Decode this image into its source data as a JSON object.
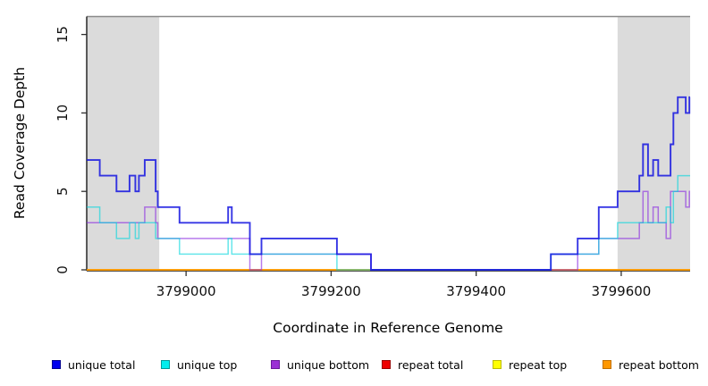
{
  "chart_data": {
    "type": "line",
    "subtype": "step-coverage",
    "title": "",
    "xlabel": "Coordinate in Reference Genome",
    "ylabel": "Read Coverage Depth",
    "xlim": [
      3798863,
      3799695
    ],
    "ylim": [
      0,
      16.2
    ],
    "x_ticks": [
      3799000,
      3799200,
      3799400,
      3799600
    ],
    "x_tick_labels": [
      "3799000",
      "3799200",
      "3799400",
      "3799600"
    ],
    "y_ticks": [
      0,
      5,
      10,
      15
    ],
    "y_tick_labels": [
      "0",
      "5",
      "10",
      "15"
    ],
    "grid": false,
    "legend_position": "bottom",
    "shaded_region_color": "#DBDBDB",
    "shaded_regions": [
      {
        "x0": 3798863,
        "x1": 3798963
      },
      {
        "x0": 3799595,
        "x1": 3799695
      }
    ],
    "series": [
      {
        "name": "unique-total",
        "label": "unique total",
        "line_color": "#1414E0",
        "line_opacity": 0.85,
        "line_width": 1.9,
        "swatch_fill": "#0000EE",
        "swatch_border": "#000090",
        "points": [
          [
            3798863,
            7
          ],
          [
            3798881,
            6
          ],
          [
            3798904,
            5
          ],
          [
            3798922,
            6
          ],
          [
            3798930,
            5
          ],
          [
            3798935,
            6
          ],
          [
            3798943,
            7
          ],
          [
            3798958,
            5
          ],
          [
            3798961,
            4
          ],
          [
            3798991,
            3
          ],
          [
            3799058,
            4
          ],
          [
            3799063,
            3
          ],
          [
            3799088,
            1
          ],
          [
            3799104,
            2
          ],
          [
            3799208,
            1
          ],
          [
            3799255,
            0
          ],
          [
            3799503,
            1
          ],
          [
            3799540,
            2
          ],
          [
            3799569,
            4
          ],
          [
            3799595,
            5
          ],
          [
            3799625,
            6
          ],
          [
            3799630,
            8
          ],
          [
            3799637,
            6
          ],
          [
            3799644,
            7
          ],
          [
            3799651,
            6
          ],
          [
            3799668,
            8
          ],
          [
            3799672,
            10
          ],
          [
            3799678,
            11
          ],
          [
            3799689,
            10
          ],
          [
            3799694,
            11
          ]
        ]
      },
      {
        "name": "unique-top",
        "label": "unique top",
        "line_color": "#00D5DC",
        "line_opacity": 0.6,
        "line_width": 1.5,
        "swatch_fill": "#00EEEE",
        "swatch_border": "#009999",
        "points": [
          [
            3798863,
            4
          ],
          [
            3798881,
            3
          ],
          [
            3798904,
            2
          ],
          [
            3798922,
            3
          ],
          [
            3798930,
            2
          ],
          [
            3798935,
            3
          ],
          [
            3798958,
            2
          ],
          [
            3798991,
            1
          ],
          [
            3799058,
            2
          ],
          [
            3799063,
            1
          ],
          [
            3799208,
            0
          ],
          [
            3799503,
            1
          ],
          [
            3799569,
            2
          ],
          [
            3799595,
            3
          ],
          [
            3799662,
            4
          ],
          [
            3799668,
            3
          ],
          [
            3799672,
            5
          ],
          [
            3799678,
            6
          ]
        ]
      },
      {
        "name": "unique-bottom",
        "label": "unique bottom",
        "line_color": "#8A2BE2",
        "line_opacity": 0.62,
        "line_width": 1.5,
        "swatch_fill": "#9B30D5",
        "swatch_border": "#6A1B9A",
        "points": [
          [
            3798863,
            3
          ],
          [
            3798943,
            4
          ],
          [
            3798958,
            3
          ],
          [
            3798961,
            2
          ],
          [
            3799088,
            0
          ],
          [
            3799104,
            1
          ],
          [
            3799255,
            0
          ],
          [
            3799540,
            1
          ],
          [
            3799569,
            2
          ],
          [
            3799625,
            3
          ],
          [
            3799630,
            5
          ],
          [
            3799637,
            3
          ],
          [
            3799644,
            4
          ],
          [
            3799651,
            3
          ],
          [
            3799662,
            2
          ],
          [
            3799668,
            5
          ],
          [
            3799689,
            4
          ],
          [
            3799694,
            5
          ]
        ]
      },
      {
        "name": "repeat-total",
        "label": "repeat total",
        "line_color": "#E00000",
        "line_opacity": 1,
        "line_width": 1.4,
        "swatch_fill": "#EE0000",
        "swatch_border": "#990000",
        "points": [
          [
            3798863,
            0
          ]
        ]
      },
      {
        "name": "repeat-top",
        "label": "repeat top",
        "line_color": "#FFFF00",
        "line_opacity": 1,
        "line_width": 1.4,
        "swatch_fill": "#FFFF00",
        "swatch_border": "#BBBB00",
        "points": [
          [
            3798863,
            0
          ]
        ]
      },
      {
        "name": "repeat-bottom",
        "label": "repeat bottom",
        "line_color": "#FF9500",
        "line_opacity": 1,
        "line_width": 1.5,
        "swatch_fill": "#FF9800",
        "swatch_border": "#C07000",
        "points": [
          [
            3798863,
            0
          ]
        ]
      }
    ]
  }
}
